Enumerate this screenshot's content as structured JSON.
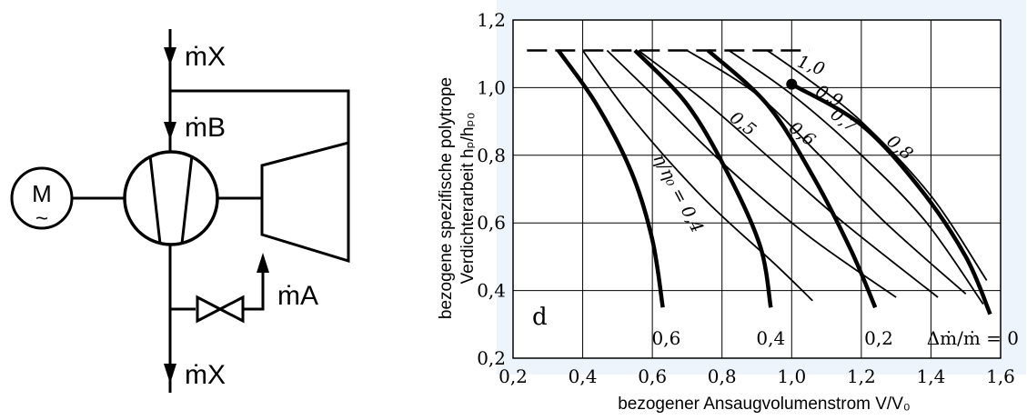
{
  "schematic": {
    "motor_letter": "M",
    "motor_tilde": "~",
    "labels": {
      "mx_top": "ṁX",
      "mb": "ṁB",
      "ma": "ṁA",
      "mx_bottom": "ṁX"
    }
  },
  "chart_data": {
    "type": "line",
    "xlabel": "bezogener Ansaugvolumenstrom V/V₀",
    "ylabel_line1": "bezogene spezifische polytrope",
    "ylabel_line2": "Verdichterarbeit hₚ/hₚ₀",
    "xlim": [
      0.2,
      1.6
    ],
    "ylim": [
      0.2,
      1.2
    ],
    "x_ticks": [
      "0,2",
      "0,4",
      "0,6",
      "0,8",
      "1,0",
      "1,2",
      "1,4",
      "1,6"
    ],
    "y_ticks": [
      "0,2",
      "0,4",
      "0,6",
      "0,8",
      "1,0",
      "1,2"
    ],
    "grid": true,
    "panel_letter": "d",
    "surge_line_y": 1.11,
    "speed_lines": [
      {
        "label": "0,6",
        "points": [
          [
            0.33,
            1.11
          ],
          [
            0.44,
            0.95
          ],
          [
            0.54,
            0.75
          ],
          [
            0.6,
            0.55
          ],
          [
            0.63,
            0.35
          ]
        ]
      },
      {
        "label": "0,4",
        "points": [
          [
            0.55,
            1.11
          ],
          [
            0.7,
            0.95
          ],
          [
            0.82,
            0.74
          ],
          [
            0.91,
            0.53
          ],
          [
            0.94,
            0.35
          ]
        ]
      },
      {
        "label": "0,2",
        "points": [
          [
            0.76,
            1.11
          ],
          [
            0.93,
            0.95
          ],
          [
            1.06,
            0.74
          ],
          [
            1.17,
            0.52
          ],
          [
            1.24,
            0.35
          ]
        ]
      },
      {
        "label": "Δṁ/ṁ = 0",
        "points": [
          [
            1.0,
            1.01
          ],
          [
            1.2,
            0.89
          ],
          [
            1.37,
            0.7
          ],
          [
            1.5,
            0.5
          ],
          [
            1.57,
            0.33
          ]
        ]
      }
    ],
    "efficiency_lines": [
      {
        "label": "η/η₀ = 0,4",
        "points": [
          [
            0.4,
            1.11
          ],
          [
            0.55,
            0.9
          ],
          [
            0.75,
            0.67
          ],
          [
            0.95,
            0.48
          ],
          [
            1.06,
            0.37
          ]
        ]
      },
      {
        "label": "0,5",
        "points": [
          [
            0.47,
            1.11
          ],
          [
            0.62,
            0.96
          ],
          [
            0.82,
            0.76
          ],
          [
            1.05,
            0.56
          ],
          [
            1.3,
            0.38
          ]
        ]
      },
      {
        "label": "0,6",
        "points": [
          [
            0.56,
            1.11
          ],
          [
            0.75,
            0.96
          ],
          [
            0.95,
            0.78
          ],
          [
            1.15,
            0.6
          ],
          [
            1.42,
            0.38
          ]
        ]
      },
      {
        "label": "0,7",
        "points": [
          [
            0.7,
            1.11
          ],
          [
            0.9,
            0.98
          ],
          [
            1.08,
            0.8
          ],
          [
            1.27,
            0.6
          ],
          [
            1.5,
            0.39
          ]
        ]
      },
      {
        "label": "0,8",
        "points": [
          [
            0.82,
            1.11
          ],
          [
            1.0,
            0.98
          ],
          [
            1.18,
            0.82
          ],
          [
            1.38,
            0.61
          ],
          [
            1.55,
            0.36
          ]
        ]
      },
      {
        "label": "0,9",
        "points": [
          [
            0.93,
            1.11
          ],
          [
            1.04,
            1.03
          ],
          [
            1.2,
            0.9
          ],
          [
            1.4,
            0.68
          ],
          [
            1.56,
            0.43
          ]
        ]
      },
      {
        "label": "1,0",
        "points": [
          [
            1.0,
            1.01
          ]
        ]
      }
    ],
    "design_point": [
      1.0,
      1.01
    ]
  }
}
